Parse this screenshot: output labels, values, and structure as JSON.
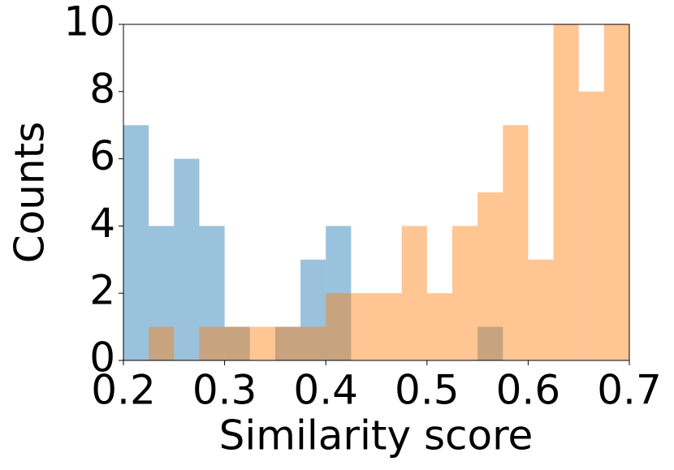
{
  "chart_data": {
    "type": "histogram",
    "xlabel": "Similarity score",
    "ylabel": "Counts",
    "bins": [
      0.2,
      0.225,
      0.25,
      0.275,
      0.3,
      0.325,
      0.35,
      0.375,
      0.4,
      0.425,
      0.45,
      0.475,
      0.5,
      0.525,
      0.55,
      0.575,
      0.6,
      0.625,
      0.65,
      0.675,
      0.7
    ],
    "series": [
      {
        "color": "#1f77b4",
        "values": [
          7,
          4,
          6,
          4,
          1,
          0,
          1,
          3,
          4,
          0,
          0,
          0,
          0,
          0,
          1,
          0,
          0,
          0,
          0,
          0
        ]
      },
      {
        "color": "#ff7f0e",
        "values": [
          0,
          1,
          0,
          1,
          1,
          1,
          1,
          1,
          2,
          2,
          2,
          4,
          2,
          4,
          5,
          7,
          3,
          10,
          8,
          10
        ]
      }
    ],
    "opacity": 0.45,
    "xlim": [
      0.2,
      0.7
    ],
    "xticks": [
      0.2,
      0.3,
      0.4,
      0.5,
      0.6,
      0.7
    ],
    "ylim": [
      0,
      10
    ],
    "yticks": [
      0,
      2,
      4,
      6,
      8,
      10
    ]
  }
}
